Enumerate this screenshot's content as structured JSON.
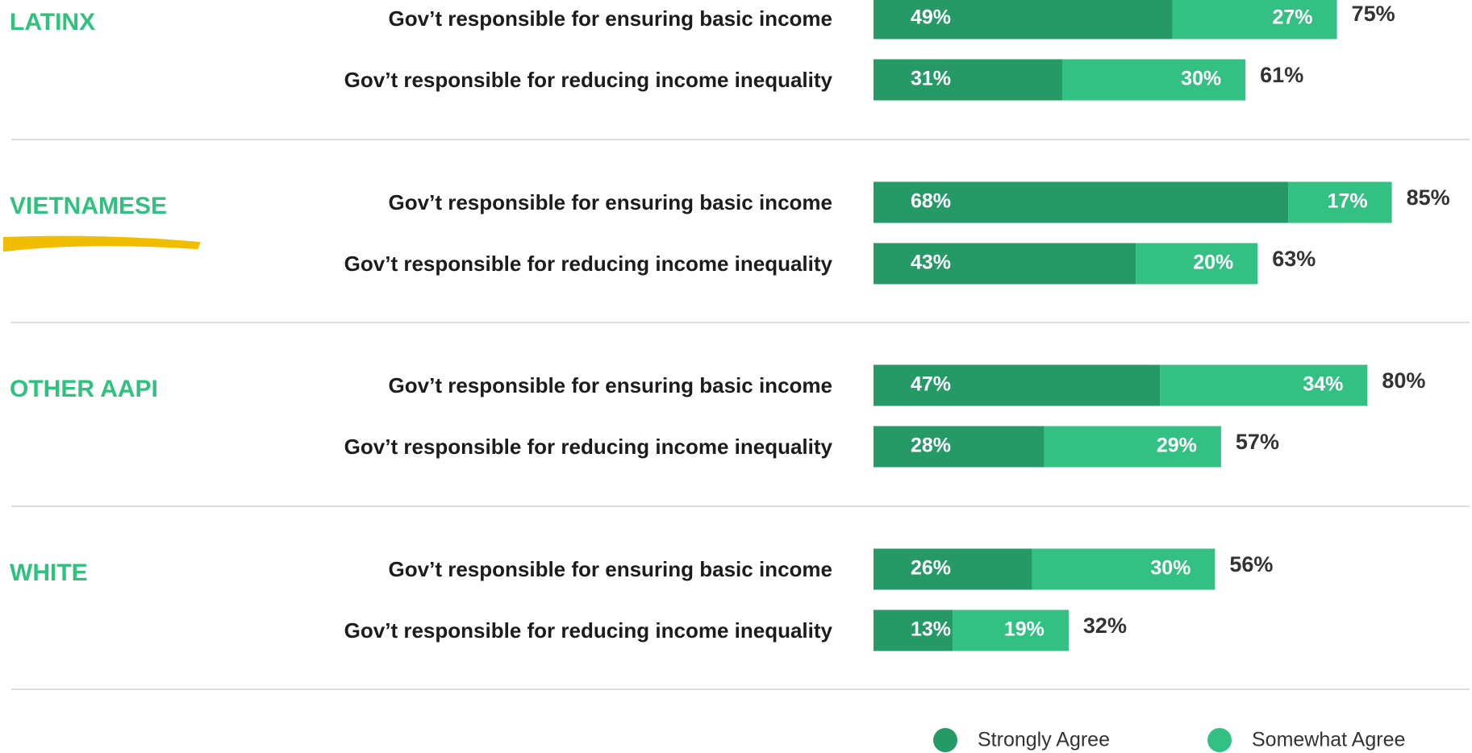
{
  "chart_data": {
    "type": "stacked-bar-horizontal",
    "groups": [
      "LATINX",
      "VIETNAMESE",
      "OTHER AAPI",
      "WHITE"
    ],
    "categories": [
      "Gov’t responsible for ensuring basic income",
      "Gov’t responsible for reducing income inequality",
      "Gov’t responsible for ensuring basic income",
      "Gov’t responsible for reducing income inequality",
      "Gov’t responsible for ensuring basic income",
      "Gov’t responsible for reducing income inequality",
      "Gov’t responsible for ensuring basic income",
      "Gov’t responsible for reducing income inequality"
    ],
    "series": [
      {
        "name": "Strongly Agree",
        "color": "#259a67",
        "values": [
          49,
          31,
          68,
          43,
          47,
          28,
          26,
          13
        ],
        "value_labels": [
          "49%",
          "31%",
          "68%",
          "43%",
          "47%",
          "28%",
          "26%",
          "13%"
        ]
      },
      {
        "name": "Somewhat Agree",
        "color": "#33c183",
        "values": [
          27,
          30,
          17,
          20,
          34,
          29,
          30,
          19
        ],
        "value_labels": [
          "27%",
          "30%",
          "17%",
          "20%",
          "34%",
          "29%",
          "30%",
          "19%"
        ]
      }
    ],
    "totals": [
      75,
      61,
      85,
      63,
      80,
      57,
      56,
      32
    ],
    "total_labels": [
      "75%",
      "61%",
      "85%",
      "63%",
      "80%",
      "57%",
      "56%",
      "32%"
    ]
  }
}
